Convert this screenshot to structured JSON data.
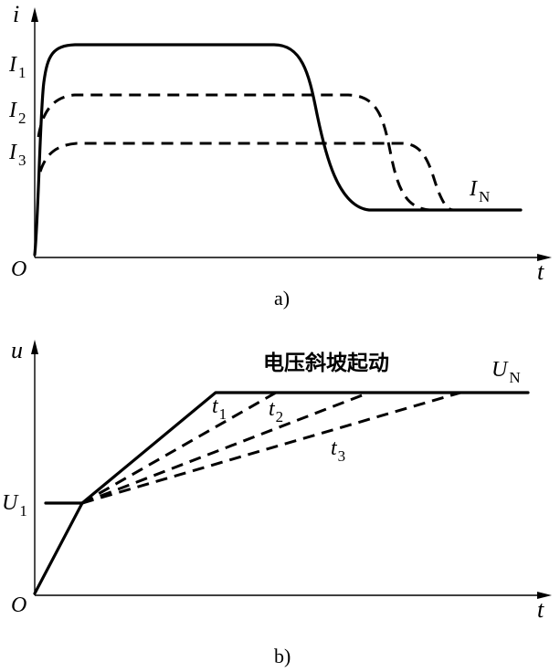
{
  "diagram_a": {
    "y_axis_label": "i",
    "x_axis_label": "t",
    "origin_label": "O",
    "curves": [
      {
        "level_main": "I",
        "level_sub": "1",
        "style": "solid"
      },
      {
        "level_main": "I",
        "level_sub": "2",
        "style": "dashed"
      },
      {
        "level_main": "I",
        "level_sub": "3",
        "style": "dashed"
      }
    ],
    "nominal_main": "I",
    "nominal_sub": "N",
    "caption": "a)"
  },
  "diagram_b": {
    "y_axis_label": "u",
    "x_axis_label": "t",
    "origin_label": "O",
    "title": "电压斜坡起动",
    "initial_main": "U",
    "initial_sub": "1",
    "nominal_main": "U",
    "nominal_sub": "N",
    "ramps": [
      {
        "time_main": "t",
        "time_sub": "1",
        "style": "solid"
      },
      {
        "time_main": "t",
        "time_sub": "2",
        "style": "dashed"
      },
      {
        "time_main": "t",
        "time_sub": "3",
        "style": "dashed"
      }
    ],
    "caption": "b)"
  }
}
